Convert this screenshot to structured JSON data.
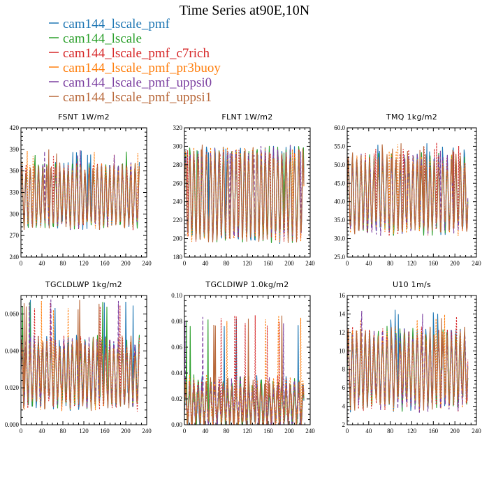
{
  "figure": {
    "title": "Time Series at90E,10N"
  },
  "legend": [
    {
      "name": "cam144_lscale_pmf",
      "color": "#1f77b4",
      "dash": "solid"
    },
    {
      "name": "cam144_lscale",
      "color": "#2ca02c",
      "dash": "solid"
    },
    {
      "name": "cam144_lscale_pmf_c7rich",
      "color": "#d62728",
      "dash": "dotted"
    },
    {
      "name": "cam144_lscale_pmf_pr3buoy",
      "color": "#ff7f0e",
      "dash": "dotted"
    },
    {
      "name": "cam144_lscale_pmf_uppsi0",
      "color": "#7b3fa0",
      "dash": "dashed"
    },
    {
      "name": "cam144_lscale_pmf_uppsi1",
      "color": "#b8683a",
      "dash": "solid"
    }
  ],
  "chart_data": [
    {
      "type": "line",
      "title": "FSNT   1W/m2",
      "xlim": [
        0,
        240
      ],
      "ylim": [
        240,
        420
      ],
      "xticks": [
        0,
        40,
        80,
        120,
        160,
        200,
        240
      ],
      "yticks": [
        "240",
        "270",
        "300",
        "330",
        "360",
        "390",
        "420"
      ],
      "ytick_values": [
        240,
        270,
        300,
        330,
        360,
        390,
        420
      ],
      "x_range": [
        0,
        226
      ],
      "center": 325,
      "amplitude": 38,
      "period": 8.0,
      "noise": 10,
      "spike": 390,
      "series_note": "six overlapping series from legend"
    },
    {
      "type": "line",
      "title": "FLNT   1W/m2",
      "xlim": [
        0,
        240
      ],
      "ylim": [
        180,
        320
      ],
      "xticks": [
        0,
        40,
        80,
        120,
        160,
        200,
        240
      ],
      "yticks": [
        "180",
        "200",
        "220",
        "240",
        "260",
        "280",
        "300",
        "320"
      ],
      "ytick_values": [
        180,
        200,
        220,
        240,
        260,
        280,
        300,
        320
      ],
      "x_range": [
        0,
        228
      ],
      "center": 248,
      "amplitude": 44,
      "period": 8.0,
      "noise": 10,
      "spike": 300
    },
    {
      "type": "line",
      "title": "TMQ   1kg/m2",
      "xlim": [
        0,
        240
      ],
      "ylim": [
        25,
        60
      ],
      "xticks": [
        0,
        40,
        80,
        120,
        160,
        200,
        240
      ],
      "yticks": [
        "25.0",
        "30.0",
        "35.0",
        "40.0",
        "45.0",
        "50.0",
        "55.0",
        "60.0"
      ],
      "ytick_values": [
        25,
        30,
        35,
        40,
        45,
        50,
        55,
        60
      ],
      "x_range": [
        0,
        224
      ],
      "center": 42,
      "amplitude": 9,
      "period": 8.0,
      "noise": 2.5,
      "spike": 56
    },
    {
      "type": "line",
      "title": "TGCLDLWP   1kg/m2",
      "xlim": [
        0,
        240
      ],
      "ylim": [
        0,
        0.07
      ],
      "xticks": [
        0,
        40,
        80,
        120,
        160,
        200,
        240
      ],
      "yticks": [
        "0.000",
        "0.020",
        "0.040",
        "0.060"
      ],
      "ytick_values": [
        0,
        0.02,
        0.04,
        0.06
      ],
      "x_range": [
        0,
        226
      ],
      "center": 0.028,
      "amplitude": 0.015,
      "period": 8.0,
      "noise": 0.006,
      "spike": 0.068
    },
    {
      "type": "line",
      "title": "TGCLDIWP   1.0kg/m2",
      "xlim": [
        0,
        240
      ],
      "ylim": [
        0,
        0.1
      ],
      "xticks": [
        0,
        40,
        80,
        120,
        160,
        200,
        240
      ],
      "yticks": [
        "0.00",
        "0.02",
        "0.04",
        "0.06",
        "0.08",
        "0.10"
      ],
      "ytick_values": [
        0,
        0.02,
        0.04,
        0.06,
        0.08,
        0.1
      ],
      "x_range": [
        0,
        228
      ],
      "center": 0.016,
      "amplitude": 0.014,
      "period": 8.0,
      "noise": 0.009,
      "spike": 0.085
    },
    {
      "type": "line",
      "title": "U10   1m/s",
      "xlim": [
        0,
        240
      ],
      "ylim": [
        2,
        16
      ],
      "xticks": [
        0,
        40,
        80,
        120,
        160,
        200,
        240
      ],
      "yticks": [
        "2",
        "4",
        "6",
        "8",
        "10",
        "12",
        "14",
        "16"
      ],
      "ytick_values": [
        2,
        4,
        6,
        8,
        10,
        12,
        14,
        16
      ],
      "x_range": [
        0,
        224
      ],
      "center": 8,
      "amplitude": 3.5,
      "period": 8.0,
      "noise": 1.2,
      "spike": 14.5
    }
  ]
}
